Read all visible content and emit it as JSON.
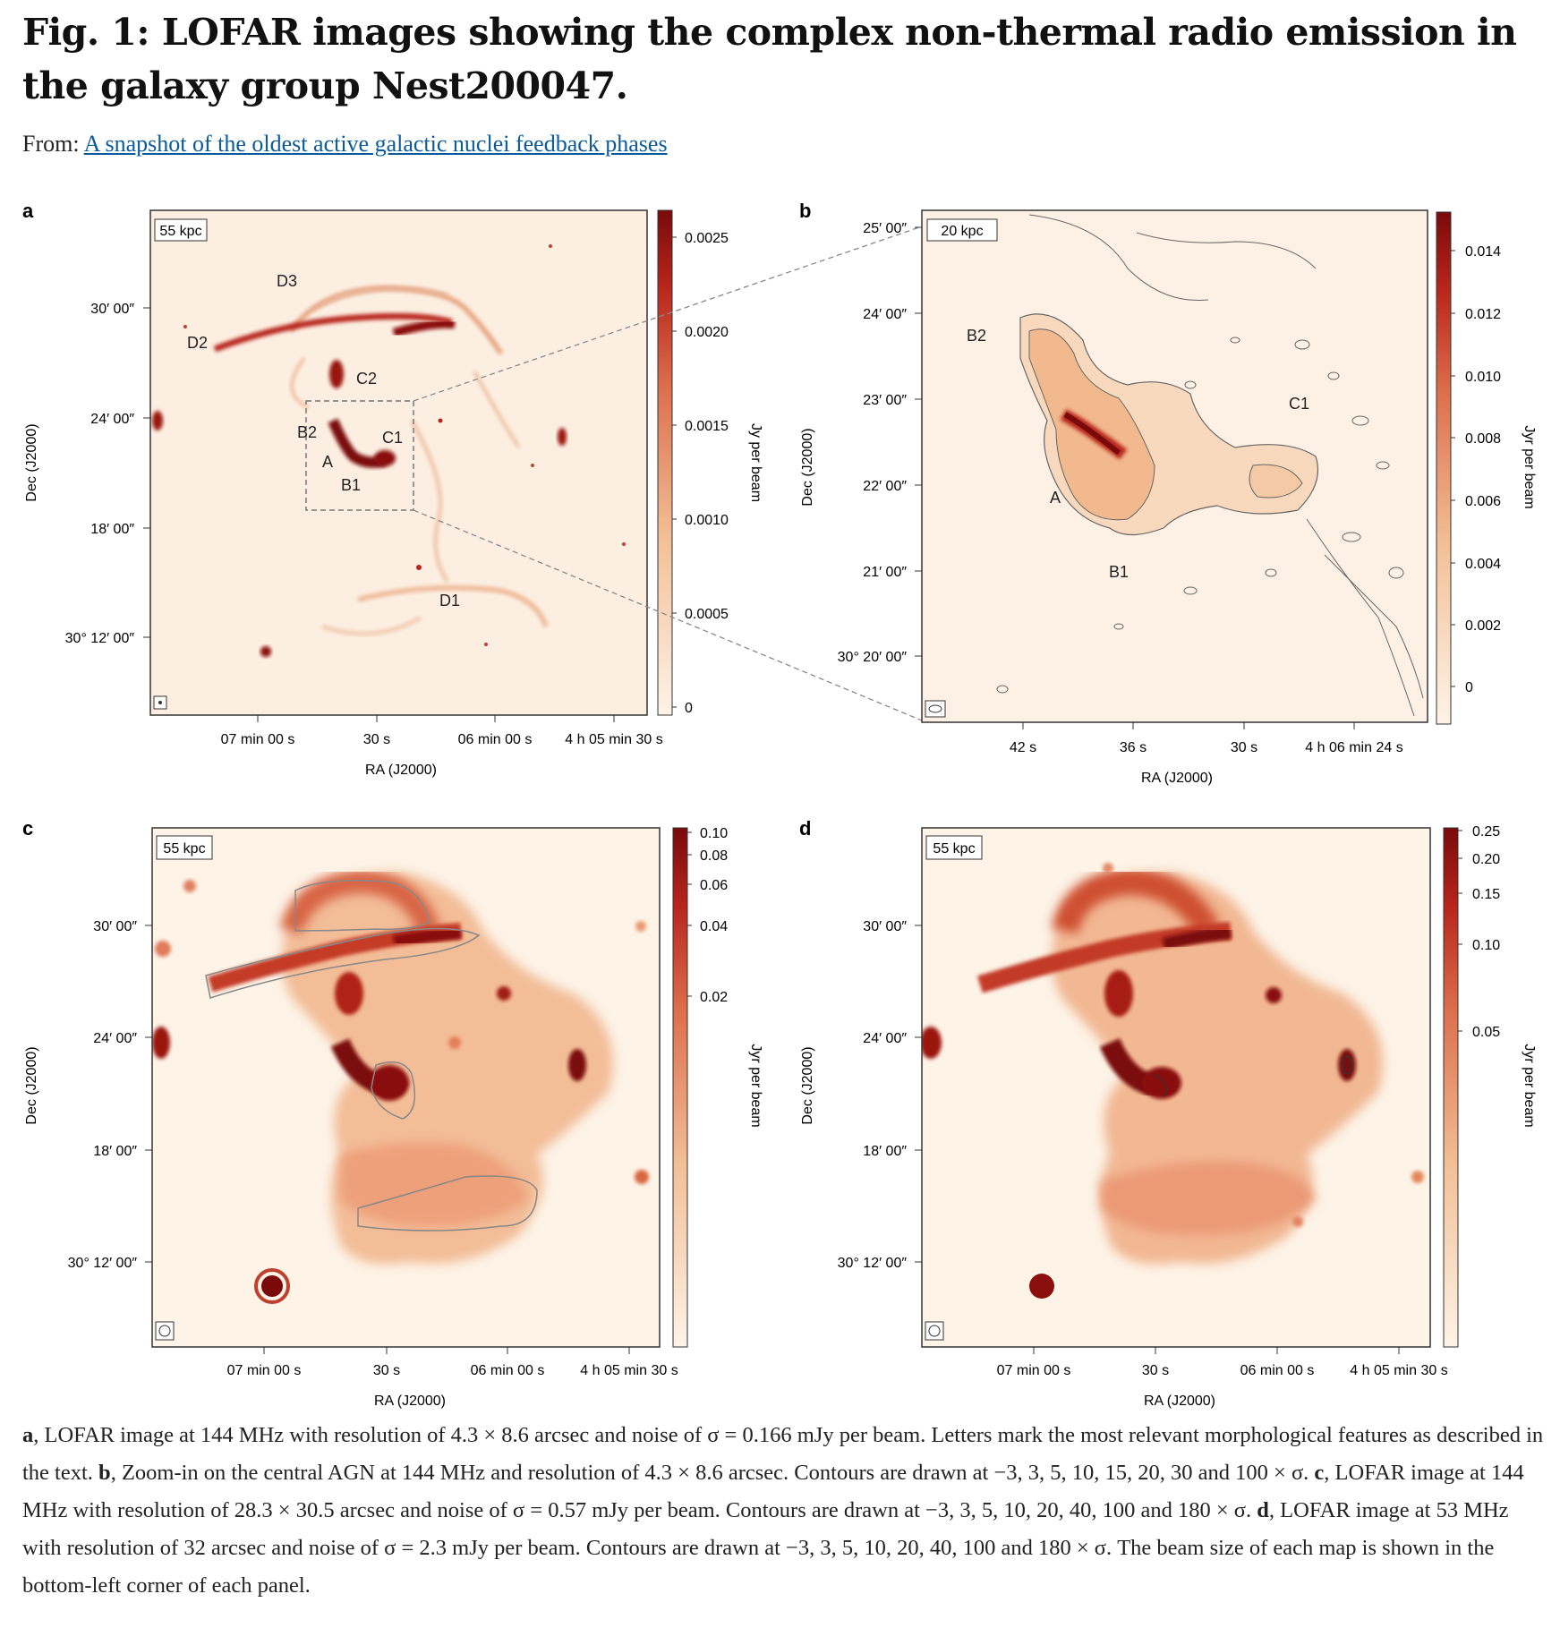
{
  "header": {
    "title": "Fig. 1: LOFAR images showing the complex non-thermal radio emission in the galaxy group Nest200047.",
    "from_label": "From:",
    "from_link": "A snapshot of the oldest active galactic nuclei feedback phases"
  },
  "panels": {
    "a": {
      "letter": "a",
      "scale_label": "55 kpc",
      "y_ticks": [
        "30′ 00″",
        "24′ 00″",
        "18′ 00″",
        "30° 12′ 00″"
      ],
      "x_ticks": [
        "07 min 00 s",
        "30 s",
        "06 min 00 s",
        "4 h 05 min 30 s"
      ],
      "xlabel": "RA (J2000)",
      "ylabel": "Dec (J2000)",
      "colorbar_ticks": [
        "0.0025",
        "0.0020",
        "0.0015",
        "0.0010",
        "0.0005",
        "0"
      ],
      "colorbar_label": "Jy per beam",
      "features": [
        "D3",
        "D2",
        "C2",
        "B2",
        "C1",
        "A",
        "B1",
        "D1"
      ]
    },
    "b": {
      "letter": "b",
      "scale_label": "20 kpc",
      "y_ticks": [
        "25′ 00″",
        "24′ 00″",
        "23′ 00″",
        "22′ 00″",
        "21′ 00″",
        "30° 20′ 00″"
      ],
      "x_ticks": [
        "42 s",
        "36 s",
        "30 s",
        "4 h 06 min 24 s"
      ],
      "xlabel": "RA (J2000)",
      "ylabel": "Dec (J2000)",
      "colorbar_ticks": [
        "0.014",
        "0.012",
        "0.010",
        "0.008",
        "0.006",
        "0.004",
        "0.002",
        "0"
      ],
      "colorbar_label": "Jyr per beam",
      "features": [
        "B2",
        "C1",
        "A",
        "B1"
      ]
    },
    "c": {
      "letter": "c",
      "scale_label": "55 kpc",
      "y_ticks": [
        "30′ 00″",
        "24′ 00″",
        "18′ 00″",
        "30° 12′ 00″"
      ],
      "x_ticks": [
        "07 min 00 s",
        "30 s",
        "06 min 00 s",
        "4 h 05 min 30 s"
      ],
      "xlabel": "RA (J2000)",
      "ylabel": "Dec (J2000)",
      "colorbar_ticks": [
        "0.10",
        "0.08",
        "0.06",
        "0.04",
        "0.02"
      ],
      "colorbar_label": "Jyr per beam"
    },
    "d": {
      "letter": "d",
      "scale_label": "55 kpc",
      "y_ticks": [
        "30′ 00″",
        "24′ 00″",
        "18′ 00″",
        "30° 12′ 00″"
      ],
      "x_ticks": [
        "07 min 00 s",
        "30 s",
        "06 min 00 s",
        "4 h 05 min 30 s"
      ],
      "xlabel": "RA (J2000)",
      "ylabel": "Dec (J2000)",
      "colorbar_ticks": [
        "0.25",
        "0.20",
        "0.15",
        "0.10",
        "0.05"
      ],
      "colorbar_label": "Jyr per beam"
    }
  },
  "caption": {
    "a_letter": "a",
    "a_text": ", LOFAR image at 144 MHz with resolution of 4.3 × 8.6 arcsec and noise of σ = 0.166 mJy per beam. Letters mark the most relevant morphological features as described in the text. ",
    "b_letter": "b",
    "b_text": ", Zoom-in on the central AGN at 144 MHz and resolution of 4.3 × 8.6 arcsec. Contours are drawn at −3, 3, 5, 10, 15, 20, 30 and 100 × σ. ",
    "c_letter": "c",
    "c_text": ", LOFAR image at 144 MHz with resolution of 28.3 × 30.5 arcsec and noise of σ = 0.57 mJy per beam. Contours are drawn at −3, 3, 5, 10, 20, 40, 100 and 180 × σ. ",
    "d_letter": "d",
    "d_text": ", LOFAR image at 53 MHz with resolution of 32 arcsec and noise of σ = 2.3 mJy per beam. Contours are drawn at −3, 3, 5, 10, 20, 40, 100 and 180 × σ. The beam size of each map is shown in the bottom-left corner of each panel."
  },
  "colors": {
    "background_low": "#fdf3e7",
    "emission_mid": "#e59a6e",
    "emission_high": "#b8251b",
    "emission_peak": "#7a0a0a",
    "link": "#0a5a9c"
  }
}
